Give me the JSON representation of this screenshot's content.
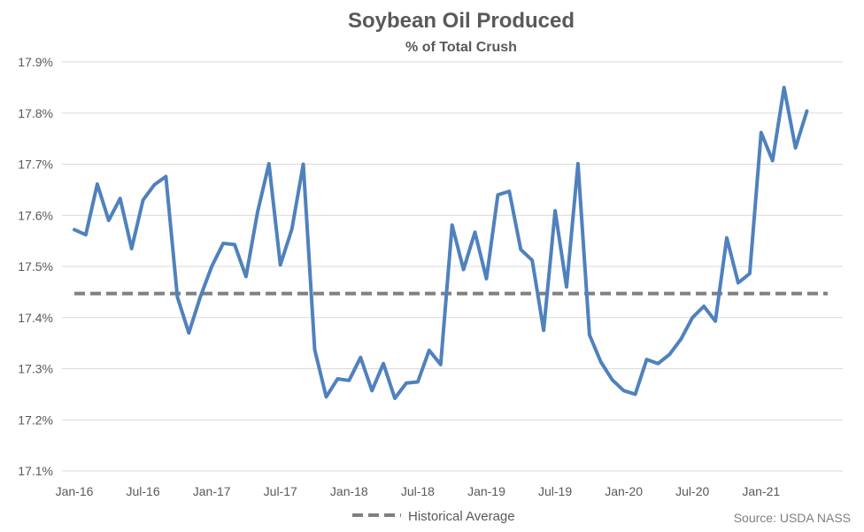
{
  "chart_data": {
    "type": "line",
    "title": "Soybean Oil Produced",
    "subtitle": "% of Total Crush",
    "xlabel": "",
    "ylabel": "",
    "ylim": [
      17.1,
      17.9
    ],
    "y_ticks": [
      "17.1%",
      "17.2%",
      "17.3%",
      "17.4%",
      "17.5%",
      "17.6%",
      "17.7%",
      "17.8%",
      "17.9%"
    ],
    "y_tick_values": [
      17.1,
      17.2,
      17.3,
      17.4,
      17.5,
      17.6,
      17.7,
      17.8,
      17.9
    ],
    "x_tick_labels": [
      "Jan-16",
      "Jul-16",
      "Jan-17",
      "Jul-17",
      "Jan-18",
      "Jul-18",
      "Jan-19",
      "Jul-19",
      "Jan-20",
      "Jul-20",
      "Jan-21"
    ],
    "x_start": "Jan-16",
    "grid": true,
    "legend_position": "bottom",
    "series": [
      {
        "name": "",
        "color": "#4f81bd",
        "style": "solid",
        "values": [
          17.572,
          17.562,
          17.661,
          17.59,
          17.633,
          17.535,
          17.63,
          17.66,
          17.676,
          17.44,
          17.37,
          17.44,
          17.5,
          17.545,
          17.543,
          17.48,
          17.606,
          17.701,
          17.503,
          17.573,
          17.7,
          17.337,
          17.245,
          17.28,
          17.277,
          17.322,
          17.257,
          17.31,
          17.242,
          17.272,
          17.274,
          17.336,
          17.308,
          17.581,
          17.494,
          17.567,
          17.476,
          17.64,
          17.647,
          17.533,
          17.512,
          17.375,
          17.609,
          17.46,
          17.701,
          17.366,
          17.313,
          17.278,
          17.257,
          17.25,
          17.318,
          17.31,
          17.328,
          17.358,
          17.4,
          17.422,
          17.393,
          17.556,
          17.468,
          17.486,
          17.762,
          17.707,
          17.85,
          17.732,
          17.804
        ]
      },
      {
        "name": "Historical Average",
        "color": "#808080",
        "style": "dashed",
        "constant": 17.447
      }
    ]
  },
  "source": "Source: USDA NASS"
}
